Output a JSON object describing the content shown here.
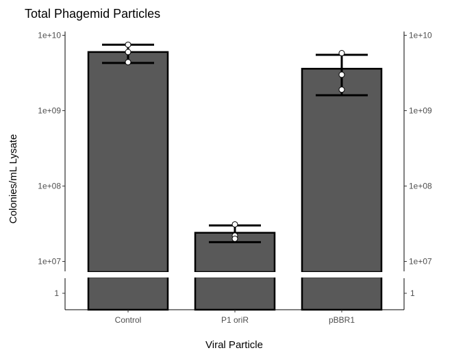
{
  "chart_data": {
    "type": "bar",
    "title": "Total Phagemid Particles",
    "xlabel": "Viral Particle",
    "ylabel": "Colonies/mL Lysate",
    "y_scale": "log10",
    "y_axis_break": true,
    "ylim": [
      10000000,
      10000000000
    ],
    "y_ticks_upper": [
      "1e+07",
      "1e+08",
      "1e+09",
      "1e+10"
    ],
    "y_tick_lower": "1",
    "secondary_y_axis": true,
    "grid": false,
    "colors": {
      "bar_fill": "#595959",
      "bar_stroke": "#000000",
      "point_fill": "#ffffff"
    },
    "categories": [
      "Control",
      "P1 oriR",
      "pBBR1"
    ],
    "values": [
      6000000000,
      24000000,
      3600000000
    ],
    "error_bars": [
      {
        "low": 4300000000,
        "high": 7500000000
      },
      {
        "low": 18000000,
        "high": 30000000
      },
      {
        "low": 1600000000,
        "high": 5500000000
      }
    ],
    "points": [
      [
        7500000000,
        6000000000,
        4400000000
      ],
      [
        31000000,
        22000000,
        20000000
      ],
      [
        5800000000,
        3000000000,
        1900000000
      ]
    ]
  }
}
